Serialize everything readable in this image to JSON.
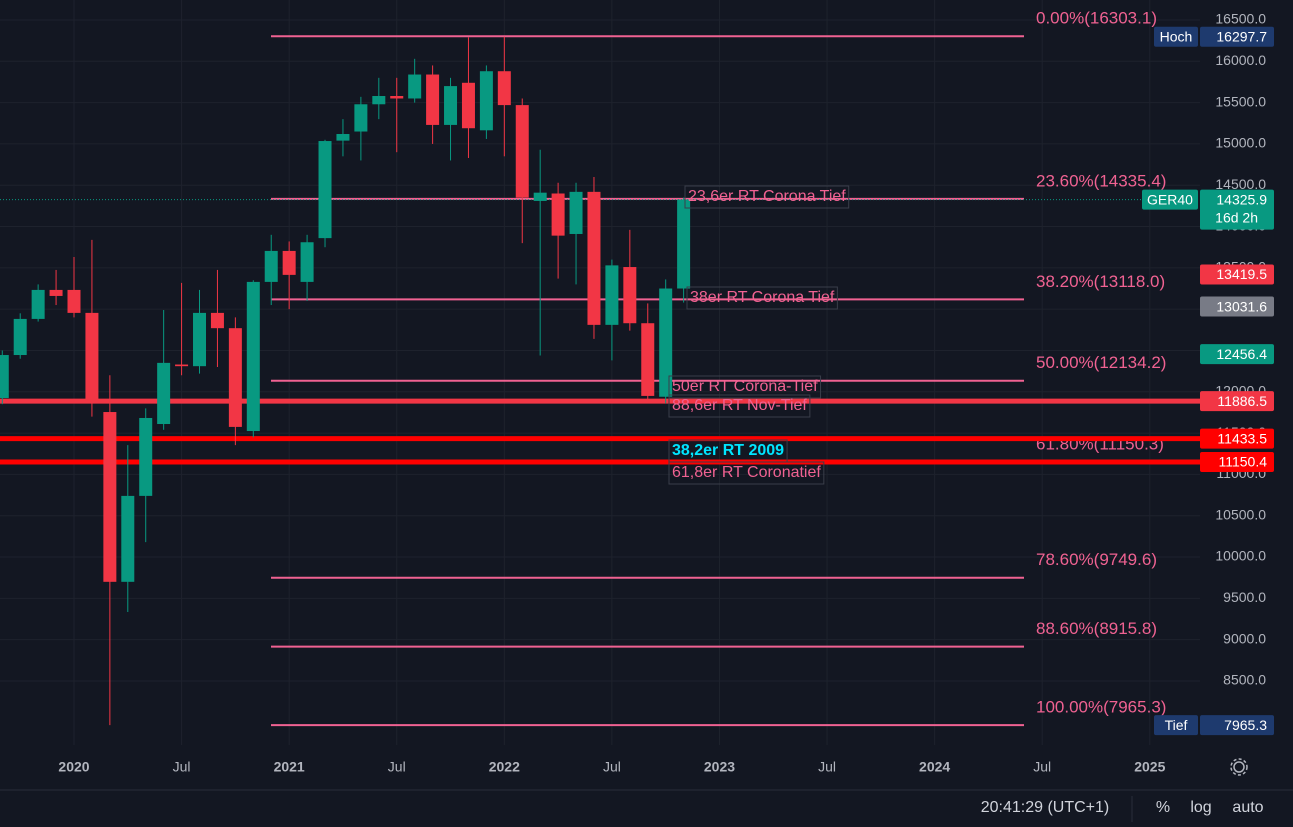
{
  "chart_data": {
    "type": "candlestick",
    "symbol": "GER40",
    "x": [
      "2019-09",
      "2019-10",
      "2019-11",
      "2019-12",
      "2020-01",
      "2020-02",
      "2020-03",
      "2020-04",
      "2020-05",
      "2020-06",
      "2020-07",
      "2020-08",
      "2020-09",
      "2020-10",
      "2020-11",
      "2020-12",
      "2021-01",
      "2021-02",
      "2021-03",
      "2021-04",
      "2021-05",
      "2021-06",
      "2021-07",
      "2021-08",
      "2021-09",
      "2021-10",
      "2021-11",
      "2021-12",
      "2022-01",
      "2022-02",
      "2022-03",
      "2022-04",
      "2022-05",
      "2022-06",
      "2022-07",
      "2022-08",
      "2022-09",
      "2022-10",
      "2022-11"
    ],
    "open": [
      11925,
      12445,
      12882,
      13233,
      13233,
      12955,
      11755,
      9700,
      10740,
      11610,
      12330,
      12310,
      12955,
      12770,
      11525,
      13330,
      13705,
      13330,
      13860,
      15040,
      15150,
      15480,
      15580,
      15550,
      15840,
      15230,
      15740,
      15165,
      15880,
      15470,
      14310,
      14400,
      13910,
      14420,
      12810,
      13510,
      12830,
      11940,
      13250
    ],
    "high": [
      12500,
      12950,
      13300,
      13475,
      13632,
      13838,
      12200,
      11355,
      11800,
      12990,
      13318,
      13233,
      13475,
      12900,
      13350,
      13900,
      13820,
      13900,
      15050,
      15300,
      15570,
      15800,
      15800,
      16030,
      15950,
      15800,
      16290,
      15950,
      16297.7,
      15550,
      14930,
      14530,
      14530,
      14600,
      13600,
      13960,
      13070,
      13360,
      14350
    ],
    "low": [
      11850,
      12400,
      12850,
      13050,
      12900,
      11700,
      7965.3,
      9335,
      10180,
      11540,
      12200,
      12220,
      12300,
      11355,
      11450,
      13050,
      13000,
      13100,
      13750,
      14850,
      14800,
      15300,
      14900,
      15500,
      15000,
      14800,
      14830,
      15060,
      14850,
      13800,
      12440,
      13370,
      13300,
      12640,
      12380,
      12740,
      11860,
      11860,
      13080
    ],
    "close": [
      12445,
      12882,
      13233,
      13160,
      12955,
      11890,
      9700,
      10740,
      11683,
      12350,
      12310,
      12955,
      12770,
      11575,
      13330,
      13705,
      13415,
      13810,
      15035,
      15120,
      15480,
      15580,
      15550,
      15840,
      15230,
      15700,
      15190,
      15880,
      15470,
      14350,
      14410,
      13890,
      14420,
      12810,
      13530,
      12830,
      11950,
      13250,
      14325.9
    ],
    "up_color": "#089981",
    "down_color": "#f23645",
    "ylim": [
      7725,
      16742
    ],
    "yticks": [
      {
        "value": 8500,
        "label": "8500.0"
      },
      {
        "value": 9000,
        "label": "9000.0"
      },
      {
        "value": 9500,
        "label": "9500.0"
      },
      {
        "value": 10000,
        "label": "10000.0"
      },
      {
        "value": 10500,
        "label": "10500.0"
      },
      {
        "value": 11000,
        "label": "11000.0"
      },
      {
        "value": 11500,
        "label": "11500.0"
      },
      {
        "value": 12000,
        "label": "12000.0"
      },
      {
        "value": 12500,
        "label": "12500.0"
      },
      {
        "value": 13000,
        "label": "13000.0"
      },
      {
        "value": 13500,
        "label": "13500.0"
      },
      {
        "value": 14000,
        "label": "14000.0"
      },
      {
        "value": 14500,
        "label": "14500.0"
      },
      {
        "value": 15000,
        "label": "15000.0"
      },
      {
        "value": 15500,
        "label": "15500.0"
      },
      {
        "value": 16000,
        "label": "16000.0"
      },
      {
        "value": 16500,
        "label": "16500.0"
      }
    ],
    "xticks": [
      {
        "value": "2020-01",
        "label": "2020"
      },
      {
        "value": "2020-07",
        "label": "Jul"
      },
      {
        "value": "2021-01",
        "label": "2021"
      },
      {
        "value": "2021-07",
        "label": "Jul"
      },
      {
        "value": "2022-01",
        "label": "2022"
      },
      {
        "value": "2022-07",
        "label": "Jul"
      },
      {
        "value": "2023-01",
        "label": "2023"
      },
      {
        "value": "2023-07",
        "label": "Jul"
      },
      {
        "value": "2024-01",
        "label": "2024"
      },
      {
        "value": "2024-07",
        "label": "Jul"
      },
      {
        "value": "2025-01",
        "label": "2025"
      }
    ],
    "fib_color": "#f06292",
    "fib_levels": [
      {
        "label": "0.00%(16303.1)",
        "value": 16303.1
      },
      {
        "label": "23.60%(14335.4)",
        "value": 14335.4
      },
      {
        "label": "38.20%(13118.0)",
        "value": 13118
      },
      {
        "label": "50.00%(12134.2)",
        "value": 12134.2
      },
      {
        "label": "61.80%(11150.3)",
        "value": 11150.3
      },
      {
        "label": "78.60%(9749.6)",
        "value": 9749.6
      },
      {
        "label": "88.60%(8915.8)",
        "value": 8915.8
      },
      {
        "label": "100.00%(7965.3)",
        "value": 7965.3
      }
    ],
    "hlines": [
      {
        "value": 11886.5,
        "color": "#f23645"
      },
      {
        "value": 11433.5,
        "color": "#ff0000"
      },
      {
        "value": 11150.4,
        "color": "#ff0000"
      }
    ],
    "annotations": [
      {
        "text": "23,6er RT Corona Tief",
        "color": "#f06292"
      },
      {
        "text": "38er RT Corona Tief",
        "color": "#f06292"
      },
      {
        "text": "50er RT Corona-Tief",
        "color": "#f06292"
      },
      {
        "text": "88,6er RT Nov-Tief",
        "color": "#f06292"
      },
      {
        "text": "38,2er RT 2009",
        "color": "#00e5ff"
      },
      {
        "text": "61,8er RT Coronatief",
        "color": "#f06292"
      }
    ],
    "price_badges": [
      {
        "tag": "Hoch",
        "value": 16297.7,
        "color": "#1e3a6e"
      },
      {
        "value": 13419.5,
        "color": "#f23645"
      },
      {
        "value": 13031.6,
        "color": "#787b86"
      },
      {
        "value": 12456.4,
        "color": "#089981"
      },
      {
        "value": 11886.5,
        "color": "#f23645"
      },
      {
        "value": 11433.5,
        "color": "#ff0000"
      },
      {
        "value": 11150.4,
        "color": "#ff0000"
      },
      {
        "tag": "Tief",
        "value": 7965.3,
        "color": "#1e3a6e"
      }
    ],
    "last_price": {
      "value": 14325.9,
      "countdown": "16d 2h",
      "color": "#089981"
    },
    "status": {
      "time": "20:41:29 (UTC+1)",
      "percent": "%",
      "log": "log",
      "auto": "auto"
    }
  }
}
